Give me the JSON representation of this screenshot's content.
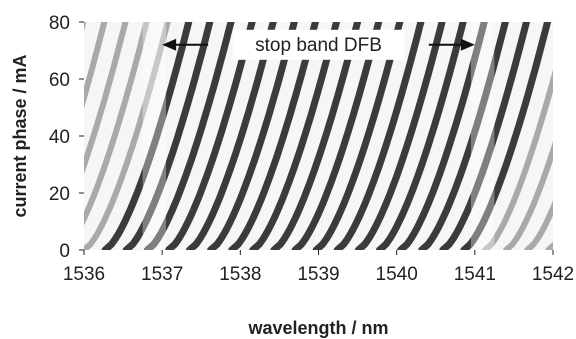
{
  "chart_data": {
    "type": "heatmap",
    "xlabel": "wavelength / nm",
    "ylabel": "current phase / mA",
    "xlim": [
      1536,
      1542
    ],
    "ylim": [
      0,
      80
    ],
    "x_ticks": [
      "1536",
      "1537",
      "1538",
      "1539",
      "1540",
      "1541",
      "1542"
    ],
    "y_ticks": [
      "0",
      "20",
      "40",
      "60",
      "80"
    ],
    "grid": false,
    "annotation": {
      "text": "stop band DFB",
      "x_start": 1537,
      "x_end": 1541,
      "y": 72
    },
    "stop_band": [
      1537,
      1541
    ],
    "colormap": [
      "#ffffff",
      "#111111"
    ]
  }
}
